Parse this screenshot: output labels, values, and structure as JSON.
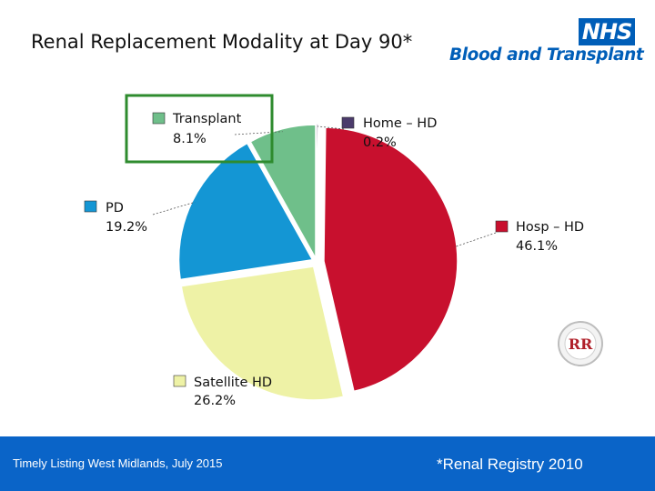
{
  "header": {
    "title": "Renal Replacement Modality at Day 90*",
    "logo_mark": "NHS",
    "logo_text": "Blood and Transplant"
  },
  "chart_data": {
    "type": "pie",
    "title": "",
    "slices": [
      {
        "label": "Home – HD",
        "value": 0.2,
        "value_label": "0.2%",
        "color": "#4B3B6B"
      },
      {
        "label": "Hosp – HD",
        "value": 46.1,
        "value_label": "46.1%",
        "color": "#C8102E"
      },
      {
        "label": "Satellite HD",
        "value": 26.2,
        "value_label": "26.2%",
        "color": "#EEF2A6"
      },
      {
        "label": "PD",
        "value": 19.2,
        "value_label": "19.2%",
        "color": "#1496D4"
      },
      {
        "label": "Transplant",
        "value": 8.1,
        "value_label": "8.1%",
        "color": "#6FBF8A"
      }
    ],
    "highlight": "Transplant",
    "highlight_color": "#2E8B2E"
  },
  "badge": {
    "text": "RR",
    "color": "#B0202A"
  },
  "footer": {
    "left_text": "Timely Listing West Midlands, July 2015",
    "right_text": "*Renal Registry 2010",
    "background": "#0A64C8"
  }
}
